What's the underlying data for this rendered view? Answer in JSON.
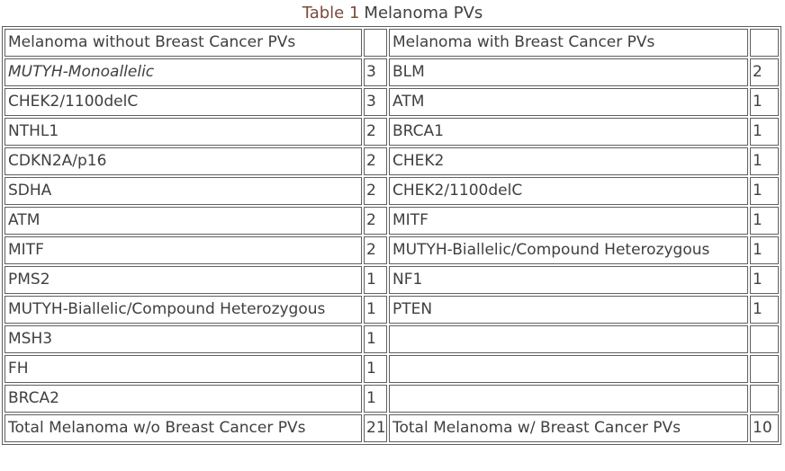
{
  "caption": {
    "label": "Table 1",
    "title": "Melanoma PVs"
  },
  "table": {
    "left": {
      "header": "Melanoma without Breast Cancer PVs",
      "rows": [
        {
          "gene": "MUTYH-Monoallelic",
          "count": "3",
          "italic": true
        },
        {
          "gene": "CHEK2/1100delC",
          "count": "3"
        },
        {
          "gene": "NTHL1",
          "count": "2"
        },
        {
          "gene": "CDKN2A/p16",
          "count": "2"
        },
        {
          "gene": "SDHA",
          "count": "2"
        },
        {
          "gene": "ATM",
          "count": "2"
        },
        {
          "gene": "MITF",
          "count": "2"
        },
        {
          "gene": "PMS2",
          "count": "1"
        },
        {
          "gene": "MUTYH-Biallelic/Compound Heterozygous",
          "count": "1"
        },
        {
          "gene": "MSH3",
          "count": "1"
        },
        {
          "gene": "FH",
          "count": "1"
        },
        {
          "gene": "BRCA2",
          "count": "1"
        }
      ],
      "total_label": "Total Melanoma w/o Breast Cancer PVs",
      "total_count": "21"
    },
    "right": {
      "header": "Melanoma with Breast Cancer PVs",
      "rows": [
        {
          "gene": "BLM",
          "count": "2"
        },
        {
          "gene": "ATM",
          "count": "1"
        },
        {
          "gene": "BRCA1",
          "count": "1"
        },
        {
          "gene": "CHEK2",
          "count": "1"
        },
        {
          "gene": "CHEK2/1100delC",
          "count": "1"
        },
        {
          "gene": "MITF",
          "count": "1"
        },
        {
          "gene": "MUTYH-Biallelic/Compound Heterozygous",
          "count": "1"
        },
        {
          "gene": "NF1",
          "count": "1"
        },
        {
          "gene": "PTEN",
          "count": "1"
        },
        {
          "gene": "",
          "count": ""
        },
        {
          "gene": "",
          "count": ""
        },
        {
          "gene": "",
          "count": ""
        }
      ],
      "total_label": "Total Melanoma w/ Breast Cancer PVs",
      "total_count": "10"
    }
  },
  "colors": {
    "caption-accent": "#7a4a3c",
    "text-color": "#3f3f3f",
    "border-color": "#5f5f5f"
  }
}
